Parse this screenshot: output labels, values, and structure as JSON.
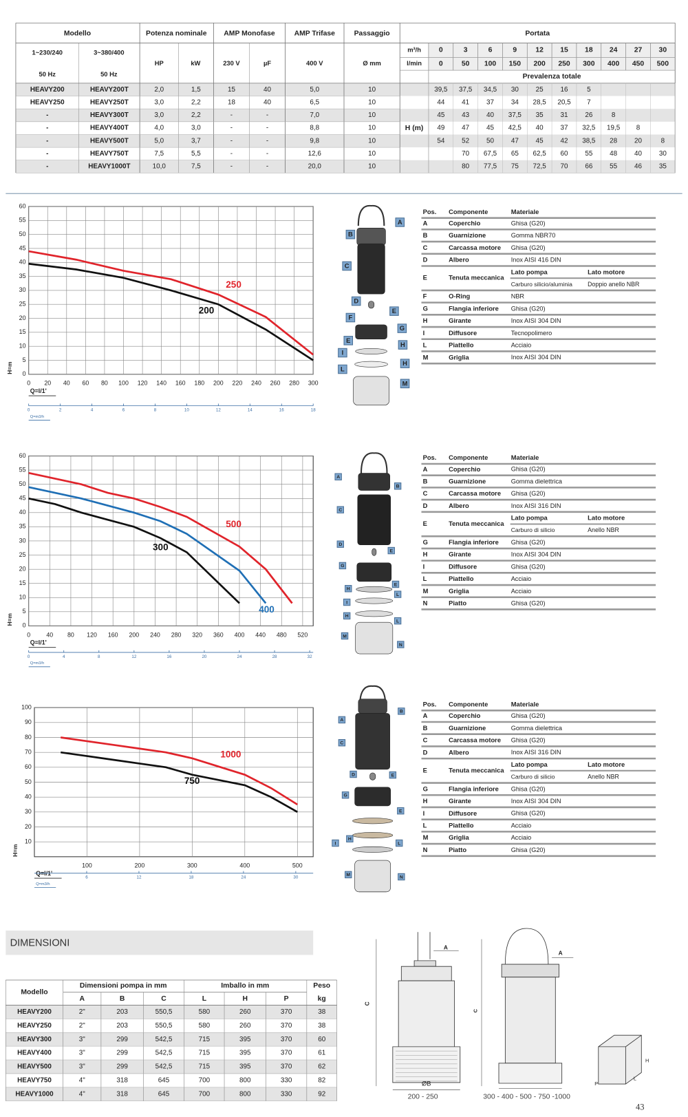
{
  "performance_table": {
    "header": {
      "model": "Modello",
      "power": "Potenza nominale",
      "amp_mono": "AMP Monofase",
      "amp_tri": "AMP Trifase",
      "passage": "Passaggio",
      "flow": "Portata"
    },
    "subheader": {
      "single_phase": "1~230/240",
      "three_phase": "3~380/400",
      "hz_1": "50 Hz",
      "hz_3": "50 Hz",
      "hp": "HP",
      "kw": "kW",
      "v230": "230 V",
      "uf": "µF",
      "v400": "400 V",
      "dia": "Ø mm"
    },
    "flow_m3h": {
      "label": "m³/h",
      "values": [
        "0",
        "3",
        "6",
        "9",
        "12",
        "15",
        "18",
        "24",
        "27",
        "30"
      ]
    },
    "flow_lmin": {
      "label": "l/min",
      "values": [
        "0",
        "50",
        "100",
        "150",
        "200",
        "250",
        "300",
        "400",
        "450",
        "500"
      ]
    },
    "head_title": "Prevalenza totale",
    "head_label": "H (m)",
    "rows": [
      {
        "cells": [
          "HEAVY200",
          "HEAVY200T",
          "2,0",
          "1,5",
          "15",
          "40",
          "5,0",
          "10"
        ],
        "heads": [
          "39,5",
          "37,5",
          "34,5",
          "30",
          "25",
          "16",
          "5",
          null,
          null,
          null
        ]
      },
      {
        "cells": [
          "HEAVY250",
          "HEAVY250T",
          "3,0",
          "2,2",
          "18",
          "40",
          "6,5",
          "10"
        ],
        "heads": [
          "44",
          "41",
          "37",
          "34",
          "28,5",
          "20,5",
          "7",
          null,
          null,
          null
        ]
      },
      {
        "cells": [
          "-",
          "HEAVY300T",
          "3,0",
          "2,2",
          "-",
          "-",
          "7,0",
          "10"
        ],
        "heads": [
          "45",
          "43",
          "40",
          "37,5",
          "35",
          "31",
          "26",
          "8",
          null,
          null
        ]
      },
      {
        "cells": [
          "-",
          "HEAVY400T",
          "4,0",
          "3,0",
          "-",
          "-",
          "8,8",
          "10"
        ],
        "heads": [
          "49",
          "47",
          "45",
          "42,5",
          "40",
          "37",
          "32,5",
          "19,5",
          "8",
          null
        ]
      },
      {
        "cells": [
          "-",
          "HEAVY500T",
          "5,0",
          "3,7",
          "-",
          "-",
          "9,8",
          "10"
        ],
        "heads": [
          "54",
          "52",
          "50",
          "47",
          "45",
          "42",
          "38,5",
          "28",
          "20",
          "8"
        ]
      },
      {
        "cells": [
          "-",
          "HEAVY750T",
          "7,5",
          "5,5",
          "-",
          "-",
          "12,6",
          "10"
        ],
        "heads": [
          null,
          "70",
          "67,5",
          "65",
          "62,5",
          "60",
          "55",
          "48",
          "40",
          "30"
        ]
      },
      {
        "cells": [
          "-",
          "HEAVY1000T",
          "10,0",
          "7,5",
          "-",
          "-",
          "20,0",
          "10"
        ],
        "heads": [
          null,
          "80",
          "77,5",
          "75",
          "72,5",
          "70",
          "66",
          "55",
          "46",
          "35"
        ]
      }
    ]
  },
  "charts": [
    {
      "type": "line",
      "y_label": "H=m",
      "x_label": "Q=l/1'",
      "x2_label": "Q=m3/h",
      "grid": true,
      "xlim": [
        0,
        300
      ],
      "xticks": [
        0,
        20,
        40,
        60,
        80,
        100,
        120,
        140,
        160,
        180,
        200,
        220,
        240,
        260,
        280,
        300
      ],
      "ylim": [
        0,
        60
      ],
      "yticks": [
        0,
        5,
        10,
        15,
        20,
        25,
        30,
        35,
        40,
        45,
        50,
        55,
        60
      ],
      "x2lim": [
        0,
        18
      ],
      "x2ticks": [
        0,
        2,
        4,
        6,
        8,
        10,
        12,
        14,
        16,
        18
      ],
      "series": [
        {
          "name": "200",
          "color": "#111111",
          "x": [
            0,
            50,
            100,
            150,
            200,
            250,
            300
          ],
          "values": [
            39.5,
            37.5,
            34.5,
            30,
            25,
            16,
            5
          ]
        },
        {
          "name": "250",
          "color": "#e0242b",
          "x": [
            0,
            50,
            100,
            150,
            200,
            250,
            300
          ],
          "values": [
            44,
            41,
            37,
            34,
            28.5,
            20.5,
            7
          ]
        }
      ]
    },
    {
      "type": "line",
      "y_label": "H=m",
      "x_label": "Q=l/1'",
      "x2_label": "Q=m3/h",
      "grid": true,
      "xlim": [
        0,
        540
      ],
      "xticks": [
        0,
        40,
        80,
        120,
        160,
        200,
        240,
        280,
        320,
        360,
        400,
        440,
        480,
        520
      ],
      "ylim": [
        0,
        60
      ],
      "yticks": [
        0,
        5,
        10,
        15,
        20,
        25,
        30,
        35,
        40,
        45,
        50,
        55,
        60
      ],
      "x2lim": [
        0,
        32.4
      ],
      "x2ticks": [
        0,
        4,
        8,
        12,
        16,
        20,
        24,
        28,
        32
      ],
      "series": [
        {
          "name": "300",
          "color": "#111111",
          "x": [
            0,
            50,
            100,
            150,
            200,
            250,
            300,
            400
          ],
          "values": [
            45,
            43,
            40,
            37.5,
            35,
            31,
            26,
            8
          ]
        },
        {
          "name": "400",
          "color": "#1f6fb5",
          "x": [
            0,
            50,
            100,
            150,
            200,
            250,
            300,
            400,
            450
          ],
          "values": [
            49,
            47,
            45,
            42.5,
            40,
            37,
            32.5,
            19.5,
            8
          ]
        },
        {
          "name": "500",
          "color": "#e0242b",
          "x": [
            0,
            50,
            100,
            150,
            200,
            250,
            300,
            400,
            450,
            500
          ],
          "values": [
            54,
            52,
            50,
            47,
            45,
            42,
            38.5,
            28,
            20,
            8
          ]
        }
      ]
    },
    {
      "type": "line",
      "y_label": "H=m",
      "x_label": "Q=l/1'",
      "x2_label": "Q=m3/h",
      "grid": true,
      "xlim": [
        0,
        530
      ],
      "xticks": [
        100,
        200,
        300,
        400,
        500
      ],
      "ylim": [
        0,
        100
      ],
      "yticks": [
        10,
        20,
        30,
        40,
        50,
        60,
        70,
        80,
        90,
        100
      ],
      "x2lim": [
        0,
        32
      ],
      "x2ticks": [
        6,
        12,
        18,
        24,
        30
      ],
      "series": [
        {
          "name": "750",
          "color": "#111111",
          "x": [
            50,
            100,
            150,
            200,
            250,
            300,
            400,
            450,
            500
          ],
          "values": [
            70,
            67.5,
            65,
            62.5,
            60,
            55,
            48,
            40,
            30
          ]
        },
        {
          "name": "1000",
          "color": "#e0242b",
          "x": [
            50,
            100,
            150,
            200,
            250,
            300,
            400,
            450,
            500
          ],
          "values": [
            80,
            77.5,
            75,
            72.5,
            70,
            66,
            55,
            46,
            35
          ]
        }
      ]
    }
  ],
  "exploded_views": [
    {
      "labels": [
        "A",
        "B",
        "C",
        "D",
        "E",
        "F",
        "G",
        "E",
        "H",
        "I",
        "H",
        "L",
        "M"
      ]
    },
    {
      "labels": [
        "A",
        "B",
        "C",
        "D",
        "E",
        "G",
        "E",
        "H",
        "L",
        "I",
        "H",
        "L",
        "M",
        "N"
      ]
    },
    {
      "labels": [
        "A",
        "B",
        "C",
        "D",
        "E",
        "G",
        "E",
        "I",
        "H",
        "L",
        "M",
        "N"
      ]
    }
  ],
  "components": [
    {
      "header": [
        "Pos.",
        "Componente",
        "Materiale"
      ],
      "rows": [
        {
          "pos": "A",
          "name": "Coperchio",
          "material": "Ghisa (G20)"
        },
        {
          "pos": "B",
          "name": "Guarnizione",
          "material": "Gomma NBR70"
        },
        {
          "pos": "C",
          "name": "Carcassa motore",
          "material": "Ghisa (G20)"
        },
        {
          "pos": "D",
          "name": "Albero",
          "material": "Inox AISI 416 DIN"
        },
        {
          "pos": "E",
          "name": "Tenuta meccanica",
          "sides": [
            "Lato pompa",
            "Lato motore"
          ],
          "materials": [
            "Carburo silicio/aluminia",
            "Doppio anello NBR"
          ]
        },
        {
          "pos": "F",
          "name": "O-Ring",
          "material": "NBR"
        },
        {
          "pos": "G",
          "name": "Flangia inferiore",
          "material": "Ghisa (G20)"
        },
        {
          "pos": "H",
          "name": "Girante",
          "material": "Inox AISI 304 DIN"
        },
        {
          "pos": "I",
          "name": "Diffusore",
          "material": "Tecnopolimero"
        },
        {
          "pos": "L",
          "name": "Piattello",
          "material": "Acciaio"
        },
        {
          "pos": "M",
          "name": "Griglia",
          "material": "Inox AISI 304 DIN"
        }
      ]
    },
    {
      "header": [
        "Pos.",
        "Componente",
        "Materiale"
      ],
      "rows": [
        {
          "pos": "A",
          "name": "Coperchio",
          "material": "Ghisa (G20)"
        },
        {
          "pos": "B",
          "name": "Guarnizione",
          "material": "Gomma dielettrica"
        },
        {
          "pos": "C",
          "name": "Carcassa motore",
          "material": "Ghisa (G20)"
        },
        {
          "pos": "D",
          "name": "Albero",
          "material": "Inox AISI 316 DIN"
        },
        {
          "pos": "E",
          "name": "Tenuta meccanica",
          "sides": [
            "Lato pompa",
            "Lato motore"
          ],
          "materials": [
            "Carburo di silicio",
            "Anello NBR"
          ]
        },
        {
          "pos": "G",
          "name": "Flangia inferiore",
          "material": "Ghisa (G20)"
        },
        {
          "pos": "H",
          "name": "Girante",
          "material": "Inox AISI 304 DIN"
        },
        {
          "pos": "I",
          "name": "Diffusore",
          "material": "Ghisa (G20)"
        },
        {
          "pos": "L",
          "name": "Piattello",
          "material": "Acciaio"
        },
        {
          "pos": "M",
          "name": "Griglia",
          "material": "Acciaio"
        },
        {
          "pos": "N",
          "name": "Piatto",
          "material": "Ghisa (G20)"
        }
      ]
    },
    {
      "header": [
        "Pos.",
        "Componente",
        "Materiale"
      ],
      "rows": [
        {
          "pos": "A",
          "name": "Coperchio",
          "material": "Ghisa (G20)"
        },
        {
          "pos": "B",
          "name": "Guarnizione",
          "material": "Gomma dielettrica"
        },
        {
          "pos": "C",
          "name": "Carcassa motore",
          "material": "Ghisa (G20)"
        },
        {
          "pos": "D",
          "name": "Albero",
          "material": "Inox AISI 316 DIN"
        },
        {
          "pos": "E",
          "name": "Tenuta meccanica",
          "sides": [
            "Lato pompa",
            "Lato motore"
          ],
          "materials": [
            "Carburo di silicio",
            "Anello NBR"
          ]
        },
        {
          "pos": "G",
          "name": "Flangia inferiore",
          "material": "Ghisa (G20)"
        },
        {
          "pos": "H",
          "name": "Girante",
          "material": "Inox AISI 304 DIN"
        },
        {
          "pos": "I",
          "name": "Diffusore",
          "material": "Ghisa (G20)"
        },
        {
          "pos": "L",
          "name": "Piattello",
          "material": "Acciaio"
        },
        {
          "pos": "M",
          "name": "Griglia",
          "material": "Acciaio"
        },
        {
          "pos": "N",
          "name": "Piatto",
          "material": "Ghisa (G20)"
        }
      ]
    }
  ],
  "dimensions": {
    "title": "DIMENSIONI",
    "header": {
      "model": "Modello",
      "pump": "Dimensioni pompa in mm",
      "pack": "Imballo in mm",
      "weight": "Peso",
      "kg": "kg",
      "cols": [
        "A",
        "B",
        "C",
        "L",
        "H",
        "P"
      ]
    },
    "rows": [
      [
        "HEAVY200",
        "2\"",
        "203",
        "550,5",
        "580",
        "260",
        "370",
        "38"
      ],
      [
        "HEAVY250",
        "2\"",
        "203",
        "550,5",
        "580",
        "260",
        "370",
        "38"
      ],
      [
        "HEAVY300",
        "3\"",
        "299",
        "542,5",
        "715",
        "395",
        "370",
        "60"
      ],
      [
        "HEAVY400",
        "3\"",
        "299",
        "542,5",
        "715",
        "395",
        "370",
        "61"
      ],
      [
        "HEAVY500",
        "3\"",
        "299",
        "542,5",
        "715",
        "395",
        "370",
        "62"
      ],
      [
        "HEAVY750",
        "4\"",
        "318",
        "645",
        "700",
        "800",
        "330",
        "82"
      ],
      [
        "HEAVY1000",
        "4\"",
        "318",
        "645",
        "700",
        "800",
        "330",
        "92"
      ]
    ],
    "drawings": {
      "small_labels": [
        "A",
        "C",
        "ØB"
      ],
      "small_caption": "200 - 250",
      "large_labels": [
        "C",
        "A"
      ],
      "large_caption": "300 - 400 - 500 - 750 -1000",
      "box_labels": [
        "H",
        "L",
        "P"
      ]
    }
  },
  "page_number": "43"
}
